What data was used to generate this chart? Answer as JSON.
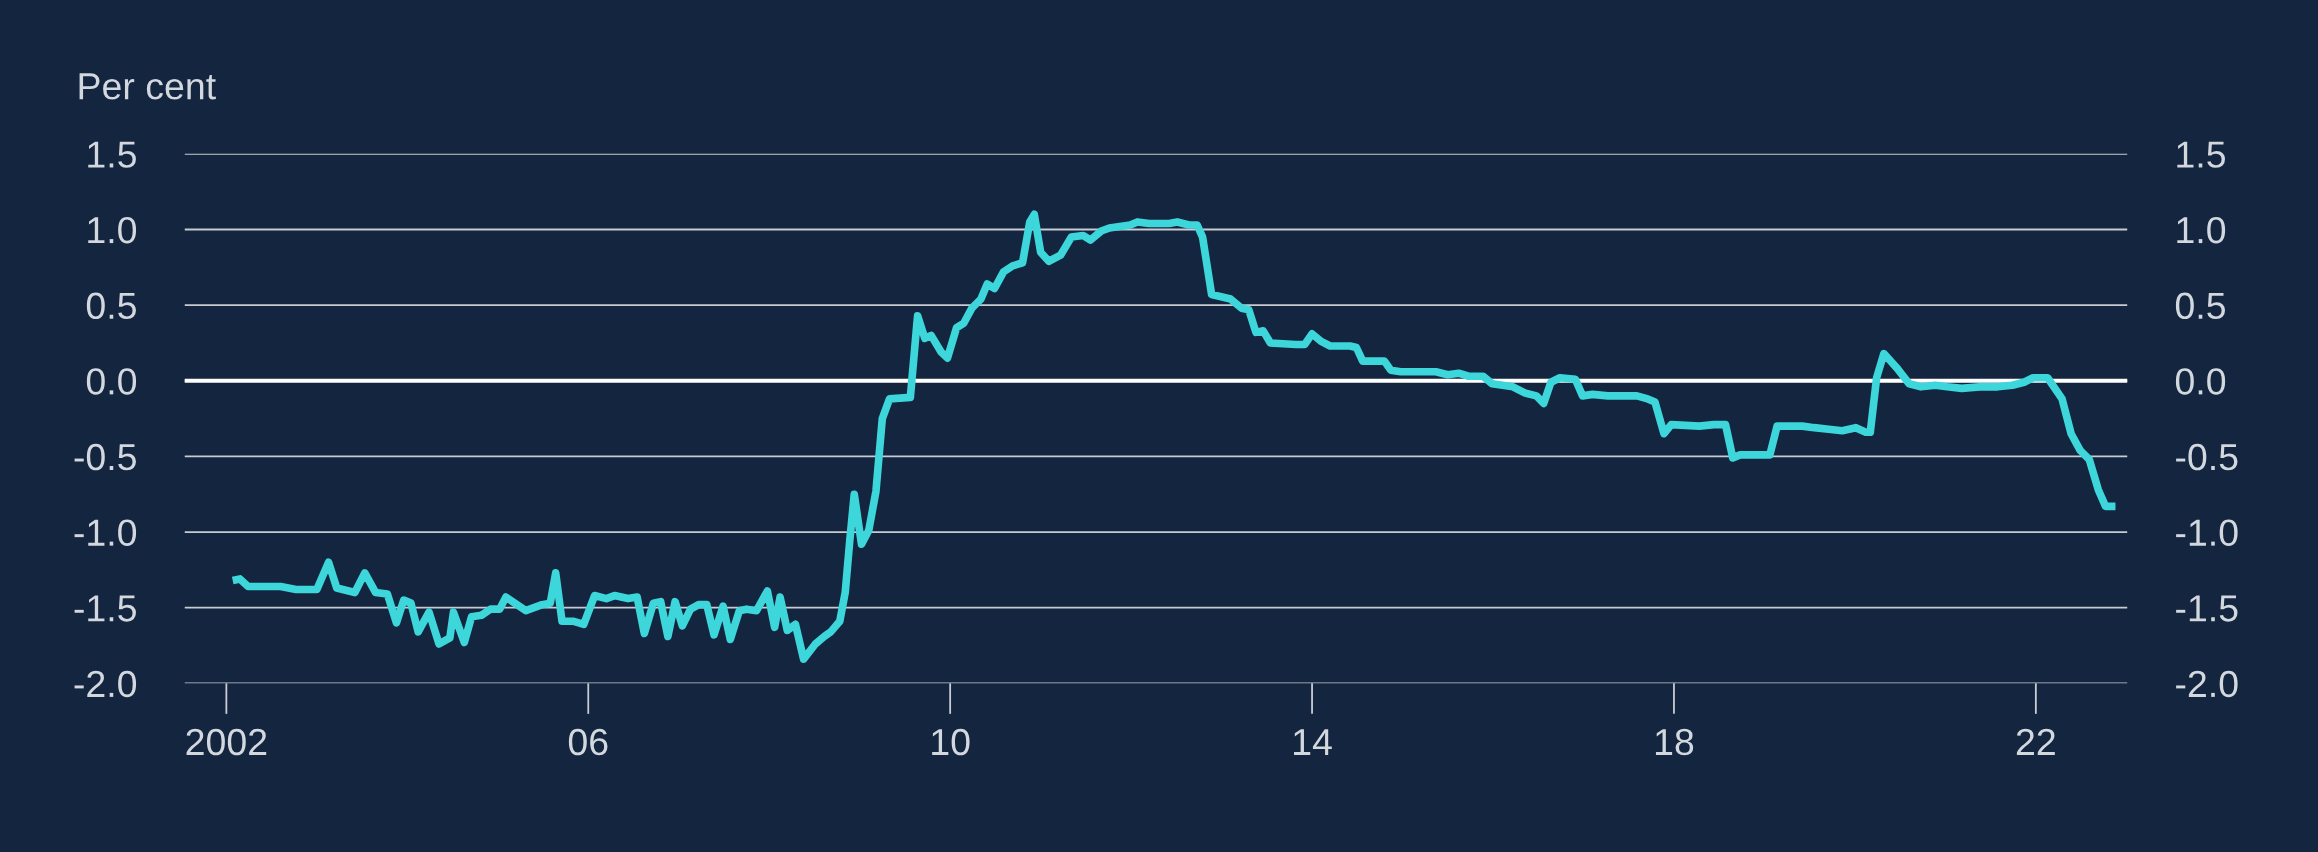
{
  "chart_data": {
    "type": "line",
    "ylabel": "Per cent",
    "xlim": [
      2001.54,
      2023.01
    ],
    "ylim": [
      -2.0,
      1.5
    ],
    "xticks": [
      {
        "value": 2002,
        "label": "2002"
      },
      {
        "value": 2006,
        "label": "06"
      },
      {
        "value": 2010,
        "label": "10"
      },
      {
        "value": 2014,
        "label": "14"
      },
      {
        "value": 2018,
        "label": "18"
      },
      {
        "value": 2022,
        "label": "22"
      }
    ],
    "yticks": [
      {
        "value": -2.0,
        "label": "-2.0"
      },
      {
        "value": -1.5,
        "label": "-1.5"
      },
      {
        "value": -1.0,
        "label": "-1.0"
      },
      {
        "value": -0.5,
        "label": "-0.5"
      },
      {
        "value": 0.0,
        "label": "0.0"
      },
      {
        "value": 0.5,
        "label": "0.5"
      },
      {
        "value": 1.0,
        "label": "1.0"
      },
      {
        "value": 1.5,
        "label": "1.5"
      }
    ],
    "y2lim": [
      -2.0,
      1.5
    ],
    "y2ticks": [
      {
        "value": -2.0,
        "label": "-2.0"
      },
      {
        "value": -1.5,
        "label": "-1.5"
      },
      {
        "value": -1.0,
        "label": "-1.0"
      },
      {
        "value": -0.5,
        "label": "-0.5"
      },
      {
        "value": 0.0,
        "label": "0.0"
      },
      {
        "value": 0.5,
        "label": "0.5"
      },
      {
        "value": 1.0,
        "label": "1.0"
      },
      {
        "value": 1.5,
        "label": "1.5"
      }
    ],
    "grid": "y",
    "legend": false,
    "marker": "none",
    "line_style": "solid",
    "ref_lines": [
      {
        "axis": "y",
        "value": 0,
        "color": "#ffffff"
      }
    ],
    "series": [
      {
        "color": "#3dd6da",
        "x": [
          2002.07,
          2002.15,
          2002.24,
          2002.6,
          2002.77,
          2003.0,
          2003.13,
          2003.22,
          2003.42,
          2003.53,
          2003.65,
          2003.78,
          2003.88,
          2003.96,
          2004.04,
          2004.12,
          2004.24,
          2004.35,
          2004.47,
          2004.51,
          2004.63,
          2004.71,
          2004.82,
          2004.92,
          2005.02,
          2005.09,
          2005.31,
          2005.49,
          2005.58,
          2005.64,
          2005.71,
          2005.84,
          2005.95,
          2006.07,
          2006.2,
          2006.29,
          2006.44,
          2006.54,
          2006.62,
          2006.72,
          2006.8,
          2006.88,
          2006.96,
          2007.04,
          2007.13,
          2007.22,
          2007.31,
          2007.39,
          2007.49,
          2007.57,
          2007.67,
          2007.75,
          2007.86,
          2007.98,
          2008.06,
          2008.12,
          2008.2,
          2008.29,
          2008.38,
          2008.51,
          2008.61,
          2008.68,
          2008.78,
          2008.84,
          2008.89,
          2008.94,
          2009.02,
          2009.1,
          2009.18,
          2009.25,
          2009.33,
          2009.56,
          2009.64,
          2009.72,
          2009.79,
          2009.9,
          2009.97,
          2010.07,
          2010.15,
          2010.24,
          2010.34,
          2010.41,
          2010.49,
          2010.59,
          2010.69,
          2010.8,
          2010.88,
          2010.93,
          2011.0,
          2011.09,
          2011.22,
          2011.34,
          2011.47,
          2011.55,
          2011.67,
          2011.76,
          2011.99,
          2012.07,
          2012.2,
          2012.42,
          2012.51,
          2012.64,
          2012.73,
          2012.79,
          2012.89,
          2013.1,
          2013.22,
          2013.3,
          2013.38,
          2013.46,
          2013.54,
          2013.82,
          2013.92,
          2014.0,
          2014.1,
          2014.2,
          2014.42,
          2014.49,
          2014.56,
          2014.72,
          2014.8,
          2014.87,
          2014.98,
          2015.09,
          2015.37,
          2015.5,
          2015.62,
          2015.73,
          2015.89,
          2015.99,
          2016.22,
          2016.35,
          2016.48,
          2016.56,
          2016.64,
          2016.74,
          2016.91,
          2016.99,
          2017.1,
          2017.27,
          2017.59,
          2017.71,
          2017.79,
          2017.89,
          2017.97,
          2018.28,
          2018.44,
          2018.57,
          2018.65,
          2018.73,
          2018.96,
          2019.06,
          2019.14,
          2019.42,
          2019.55,
          2019.71,
          2019.86,
          2020.01,
          2020.12,
          2020.17,
          2020.24,
          2020.32,
          2020.47,
          2020.6,
          2020.73,
          2020.89,
          2021.02,
          2021.18,
          2021.38,
          2021.58,
          2021.74,
          2021.87,
          2021.97,
          2022.13,
          2022.29,
          2022.39,
          2022.49,
          2022.59,
          2022.69,
          2022.77,
          2022.88
        ],
        "values": [
          -1.32,
          -1.31,
          -1.36,
          -1.36,
          -1.38,
          -1.38,
          -1.2,
          -1.37,
          -1.4,
          -1.27,
          -1.4,
          -1.41,
          -1.6,
          -1.45,
          -1.47,
          -1.66,
          -1.53,
          -1.74,
          -1.7,
          -1.53,
          -1.73,
          -1.56,
          -1.55,
          -1.51,
          -1.51,
          -1.43,
          -1.52,
          -1.48,
          -1.47,
          -1.27,
          -1.59,
          -1.59,
          -1.61,
          -1.42,
          -1.44,
          -1.42,
          -1.44,
          -1.43,
          -1.67,
          -1.47,
          -1.46,
          -1.69,
          -1.46,
          -1.62,
          -1.51,
          -1.48,
          -1.48,
          -1.68,
          -1.49,
          -1.71,
          -1.52,
          -1.51,
          -1.52,
          -1.39,
          -1.63,
          -1.43,
          -1.65,
          -1.61,
          -1.84,
          -1.74,
          -1.69,
          -1.66,
          -1.59,
          -1.4,
          -1.06,
          -0.75,
          -1.08,
          -0.99,
          -0.73,
          -0.25,
          -0.12,
          -0.11,
          0.43,
          0.28,
          0.3,
          0.19,
          0.15,
          0.35,
          0.38,
          0.48,
          0.54,
          0.64,
          0.61,
          0.72,
          0.76,
          0.78,
          1.05,
          1.1,
          0.85,
          0.79,
          0.83,
          0.95,
          0.96,
          0.93,
          0.99,
          1.01,
          1.03,
          1.05,
          1.04,
          1.04,
          1.05,
          1.03,
          1.03,
          0.95,
          0.57,
          0.54,
          0.48,
          0.47,
          0.32,
          0.33,
          0.25,
          0.24,
          0.24,
          0.31,
          0.26,
          0.23,
          0.23,
          0.22,
          0.13,
          0.13,
          0.13,
          0.07,
          0.06,
          0.06,
          0.06,
          0.04,
          0.05,
          0.03,
          0.03,
          -0.02,
          -0.04,
          -0.08,
          -0.1,
          -0.15,
          -0.01,
          0.02,
          0.01,
          -0.1,
          -0.09,
          -0.1,
          -0.1,
          -0.12,
          -0.14,
          -0.35,
          -0.29,
          -0.3,
          -0.29,
          -0.29,
          -0.51,
          -0.49,
          -0.49,
          -0.49,
          -0.3,
          -0.3,
          -0.31,
          -0.32,
          -0.33,
          -0.31,
          -0.34,
          -0.34,
          0.02,
          0.18,
          0.08,
          -0.02,
          -0.04,
          -0.03,
          -0.04,
          -0.05,
          -0.04,
          -0.04,
          -0.03,
          -0.01,
          0.02,
          0.02,
          -0.12,
          -0.35,
          -0.46,
          -0.52,
          -0.72,
          -0.83,
          -0.83
        ]
      }
    ]
  }
}
